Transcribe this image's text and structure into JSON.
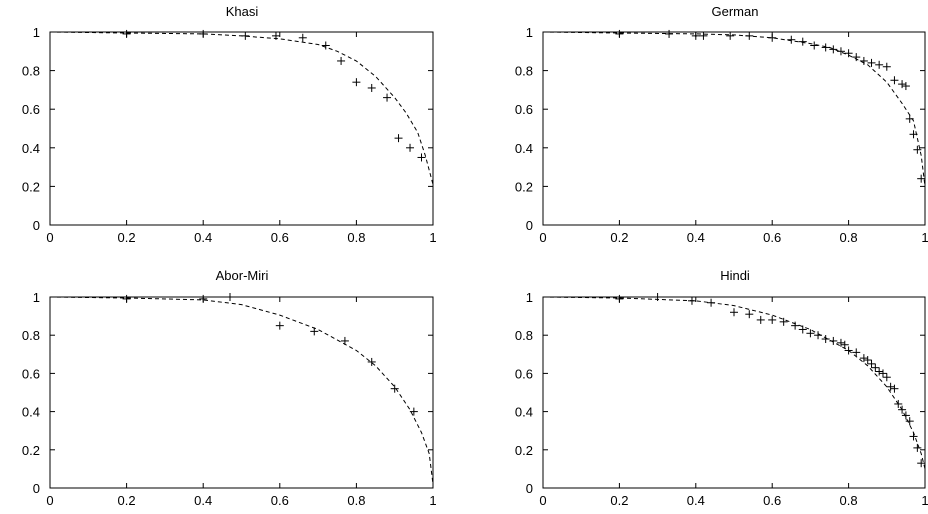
{
  "chart_data": [
    {
      "type": "scatter",
      "title": "Khasi",
      "xlim": [
        0,
        1
      ],
      "ylim": [
        0,
        1
      ],
      "xticks": [
        0,
        0.2,
        0.4,
        0.6,
        0.8,
        1
      ],
      "yticks": [
        0,
        0.2,
        0.4,
        0.6,
        0.8,
        1
      ],
      "xtick_labels": [
        "0",
        "0.2",
        "0.4",
        "0.6",
        "0.8",
        "1"
      ],
      "ytick_labels": [
        "0",
        "0.2",
        "0.4",
        "0.6",
        "0.8",
        "1"
      ],
      "grid": false,
      "series": [
        {
          "marker": "plus",
          "x": [
            0.2,
            0.4,
            0.51,
            0.59,
            0.66,
            0.72,
            0.76,
            0.8,
            0.84,
            0.88,
            0.91,
            0.94,
            0.97
          ],
          "y": [
            0.99,
            0.99,
            0.98,
            0.98,
            0.97,
            0.93,
            0.85,
            0.74,
            0.71,
            0.66,
            0.45,
            0.4,
            0.35
          ]
        },
        {
          "line": "dashed",
          "x": [
            0,
            0.2,
            0.4,
            0.5,
            0.6,
            0.7,
            0.75,
            0.8,
            0.85,
            0.9,
            0.93,
            0.96,
            0.98,
            1.0
          ],
          "y": [
            1.0,
            0.995,
            0.99,
            0.98,
            0.965,
            0.935,
            0.9,
            0.85,
            0.77,
            0.66,
            0.58,
            0.48,
            0.36,
            0.21
          ]
        }
      ]
    },
    {
      "type": "scatter",
      "title": "German",
      "xlim": [
        0,
        1
      ],
      "ylim": [
        0,
        1
      ],
      "xticks": [
        0,
        0.2,
        0.4,
        0.6,
        0.8,
        1
      ],
      "yticks": [
        0,
        0.2,
        0.4,
        0.6,
        0.8,
        1
      ],
      "xtick_labels": [
        "0",
        "0.2",
        "0.4",
        "0.6",
        "0.8",
        "1"
      ],
      "ytick_labels": [
        "0",
        "0.2",
        "0.4",
        "0.6",
        "0.8",
        "1"
      ],
      "grid": false,
      "series": [
        {
          "marker": "plus",
          "x": [
            0.2,
            0.33,
            0.4,
            0.42,
            0.49,
            0.54,
            0.6,
            0.65,
            0.68,
            0.71,
            0.74,
            0.76,
            0.78,
            0.8,
            0.82,
            0.84,
            0.86,
            0.88,
            0.9,
            0.92,
            0.94,
            0.95,
            0.96,
            0.97,
            0.98,
            0.99
          ],
          "y": [
            0.99,
            0.99,
            0.98,
            0.98,
            0.98,
            0.98,
            0.97,
            0.96,
            0.95,
            0.93,
            0.92,
            0.91,
            0.9,
            0.89,
            0.87,
            0.85,
            0.84,
            0.83,
            0.82,
            0.75,
            0.73,
            0.72,
            0.55,
            0.47,
            0.39,
            0.24
          ]
        },
        {
          "line": "dashed",
          "x": [
            0,
            0.2,
            0.4,
            0.5,
            0.6,
            0.7,
            0.75,
            0.8,
            0.85,
            0.9,
            0.94,
            0.97,
            0.99,
            1.0
          ],
          "y": [
            1.0,
            0.995,
            0.99,
            0.985,
            0.97,
            0.94,
            0.92,
            0.88,
            0.83,
            0.74,
            0.63,
            0.54,
            0.36,
            0.2
          ]
        }
      ]
    },
    {
      "type": "scatter",
      "title": "Abor-Miri",
      "xlim": [
        0,
        1
      ],
      "ylim": [
        0,
        1
      ],
      "xticks": [
        0,
        0.2,
        0.4,
        0.6,
        0.8,
        1
      ],
      "yticks": [
        0,
        0.2,
        0.4,
        0.6,
        0.8,
        1
      ],
      "xtick_labels": [
        "0",
        "0.2",
        "0.4",
        "0.6",
        "0.8",
        "1"
      ],
      "ytick_labels": [
        "0",
        "0.2",
        "0.4",
        "0.6",
        "0.8",
        "1"
      ],
      "grid": false,
      "series": [
        {
          "marker": "plus",
          "x": [
            0.2,
            0.4,
            0.47,
            0.6,
            0.69,
            0.77,
            0.84,
            0.9,
            0.95
          ],
          "y": [
            0.99,
            0.99,
            1.0,
            0.85,
            0.82,
            0.77,
            0.66,
            0.52,
            0.4
          ]
        },
        {
          "line": "dashed",
          "x": [
            0,
            0.2,
            0.4,
            0.5,
            0.6,
            0.7,
            0.8,
            0.85,
            0.9,
            0.94,
            0.97,
            0.99,
            1.0
          ],
          "y": [
            1.0,
            0.995,
            0.985,
            0.96,
            0.905,
            0.83,
            0.72,
            0.64,
            0.53,
            0.41,
            0.29,
            0.18,
            0.02
          ]
        }
      ]
    },
    {
      "type": "scatter",
      "title": "Hindi",
      "xlim": [
        0,
        1
      ],
      "ylim": [
        0,
        1
      ],
      "xticks": [
        0,
        0.2,
        0.4,
        0.6,
        0.8,
        1
      ],
      "yticks": [
        0,
        0.2,
        0.4,
        0.6,
        0.8,
        1
      ],
      "xtick_labels": [
        "0",
        "0.2",
        "0.4",
        "0.6",
        "0.8",
        "1"
      ],
      "ytick_labels": [
        "0",
        "0.2",
        "0.4",
        "0.6",
        "0.8",
        "1"
      ],
      "grid": false,
      "series": [
        {
          "marker": "plus",
          "x": [
            0.2,
            0.3,
            0.39,
            0.44,
            0.5,
            0.54,
            0.57,
            0.6,
            0.63,
            0.66,
            0.68,
            0.7,
            0.72,
            0.74,
            0.76,
            0.78,
            0.79,
            0.8,
            0.82,
            0.84,
            0.85,
            0.86,
            0.87,
            0.88,
            0.89,
            0.9,
            0.91,
            0.92,
            0.93,
            0.94,
            0.95,
            0.96,
            0.97,
            0.98,
            0.99
          ],
          "y": [
            0.99,
            1.0,
            0.98,
            0.97,
            0.92,
            0.91,
            0.88,
            0.88,
            0.87,
            0.85,
            0.83,
            0.81,
            0.8,
            0.78,
            0.77,
            0.76,
            0.75,
            0.72,
            0.71,
            0.68,
            0.67,
            0.65,
            0.63,
            0.61,
            0.6,
            0.58,
            0.53,
            0.52,
            0.44,
            0.41,
            0.38,
            0.35,
            0.27,
            0.21,
            0.13
          ]
        },
        {
          "line": "dashed",
          "x": [
            0,
            0.2,
            0.4,
            0.5,
            0.6,
            0.7,
            0.8,
            0.85,
            0.9,
            0.94,
            0.97,
            0.99,
            1.0
          ],
          "y": [
            1.0,
            0.995,
            0.98,
            0.955,
            0.905,
            0.83,
            0.72,
            0.64,
            0.53,
            0.41,
            0.29,
            0.18,
            0.1
          ]
        }
      ]
    }
  ]
}
